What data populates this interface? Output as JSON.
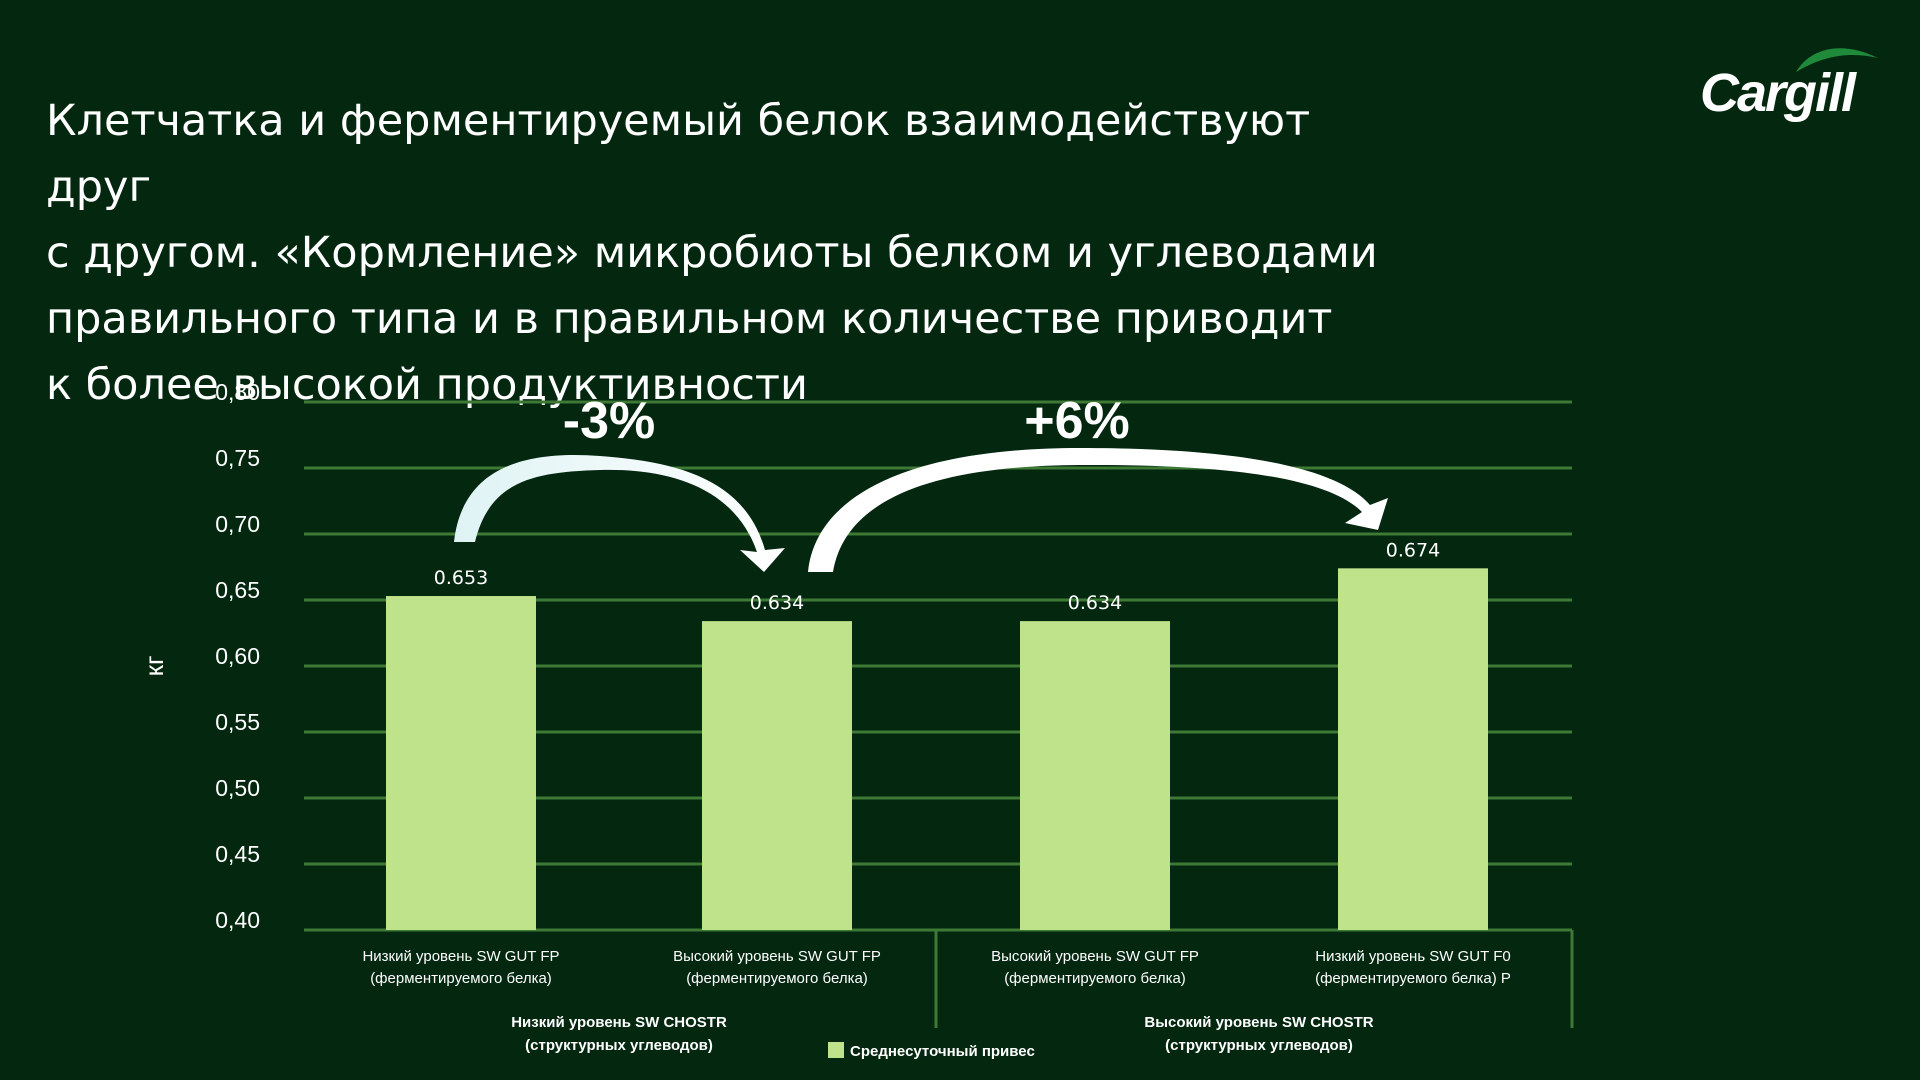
{
  "headline": {
    "lines": [
      "Клетчатка и ферментируемый белок взаимодействуют друг",
      "с другом. «Кормление» микробиоты белком и углеводами",
      "правильного типа и в правильном количестве приводит",
      "к более высокой продуктивности"
    ]
  },
  "logo": {
    "text": "Cargill"
  },
  "colors": {
    "background": "#03270f",
    "bar": "#bfe38a",
    "grid": "#3e7a35",
    "text": "#ffffff"
  },
  "chart_data": {
    "type": "bar",
    "ylabel": "кг",
    "ylim": [
      0.4,
      0.8
    ],
    "yticks": [
      "0,40",
      "0,45",
      "0,50",
      "0,55",
      "0,60",
      "0,65",
      "0,70",
      "0,75",
      "0,80"
    ],
    "ytick_values": [
      0.4,
      0.45,
      0.5,
      0.55,
      0.6,
      0.65,
      0.7,
      0.75,
      0.8
    ],
    "grid": true,
    "categories": [
      [
        "Низкий уровень SW GUT FP",
        "(ферментируемого белка)"
      ],
      [
        "Высокий уровень SW GUT FP",
        "(ферментируемого белка)"
      ],
      [
        "Высокий  уровень SW GUT FP",
        "(ферментируемого белка)"
      ],
      [
        "Низкий  уровень SW GUT F0",
        "(ферментируемого белка) P"
      ]
    ],
    "groups": [
      {
        "lines": [
          "Низкий уровень SW CHOSTR",
          "(структурных углеводов)"
        ]
      },
      {
        "lines": [
          "Высокий уровень SW CHOSTR",
          "(структурных углеводов)"
        ]
      }
    ],
    "series": [
      {
        "name": "Среднесуточный привес",
        "values": [
          0.653,
          0.634,
          0.634,
          0.674
        ],
        "labels": [
          "0.653",
          "0.634",
          "0.634",
          "0.674"
        ]
      }
    ],
    "annotations": [
      {
        "text": "-3%",
        "from": 0,
        "to": 1
      },
      {
        "text": "+6%",
        "from": 1,
        "to": 3
      }
    ],
    "legend": "bottom-center"
  }
}
